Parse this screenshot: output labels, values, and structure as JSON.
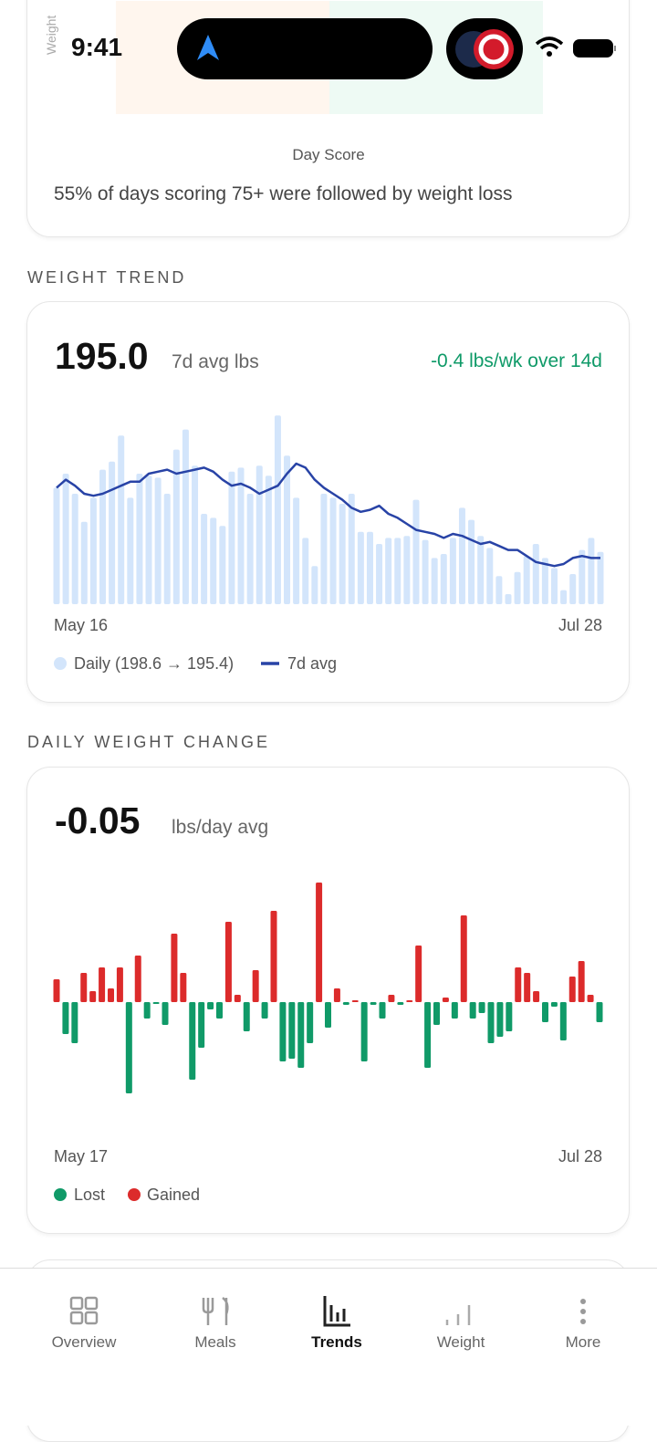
{
  "status_bar": {
    "time": "9:41"
  },
  "day_score_card": {
    "y_label": "Weight",
    "x_label": "Day Score",
    "insight": "55% of days scoring 75+ were followed by weight loss"
  },
  "weight_trend": {
    "section_title": "WEIGHT TREND",
    "value": "195.0",
    "unit": "7d avg lbs",
    "rate": "-0.4 lbs/wk over 14d",
    "chart_data": {
      "type": "bar",
      "x_labels": [
        "May 16",
        "Jul 28"
      ],
      "ylim": [
        192.8,
        203
      ],
      "series": [
        {
          "name": "Daily (198.6 → 195.4)",
          "color": "#d3e5fb",
          "values": [
            198.6,
            199.3,
            198.3,
            196.9,
            198.1,
            199.5,
            199.9,
            201.2,
            198.1,
            199.3,
            199.2,
            199.1,
            198.3,
            200.5,
            201.5,
            199.7,
            197.3,
            197.1,
            196.7,
            199.4,
            199.6,
            198.3,
            199.7,
            199.2,
            202.2,
            200.2,
            198.1,
            196.1,
            194.7,
            198.3,
            198.1,
            197.8,
            198.3,
            196.4,
            196.4,
            195.8,
            196.1,
            196.1,
            196.2,
            198.0,
            196.0,
            195.1,
            195.3,
            196.1,
            197.6,
            197.0,
            196.2,
            195.6,
            194.2,
            193.3,
            194.4,
            195.2,
            195.8,
            195.1,
            194.6,
            193.5,
            194.3,
            195.5,
            196.1,
            195.4
          ]
        },
        {
          "name": "7d avg",
          "type": "line",
          "color": "#2843a6",
          "values": [
            198.6,
            199.0,
            198.7,
            198.3,
            198.2,
            198.3,
            198.5,
            198.7,
            198.9,
            198.9,
            199.3,
            199.4,
            199.5,
            199.3,
            199.4,
            199.5,
            199.6,
            199.4,
            199.0,
            198.7,
            198.8,
            198.6,
            198.3,
            198.5,
            198.7,
            199.3,
            199.8,
            199.6,
            199.0,
            198.6,
            198.3,
            198.0,
            197.6,
            197.4,
            197.5,
            197.7,
            197.3,
            197.1,
            196.8,
            196.5,
            196.4,
            196.3,
            196.1,
            196.3,
            196.2,
            196.0,
            195.8,
            195.9,
            195.7,
            195.5,
            195.5,
            195.2,
            194.9,
            194.8,
            194.7,
            194.8,
            195.1,
            195.2,
            195.1,
            195.1
          ]
        }
      ]
    }
  },
  "daily_change": {
    "section_title": "DAILY WEIGHT CHANGE",
    "value": "-0.05",
    "unit": "lbs/day avg",
    "chart_data": {
      "type": "bar",
      "x_labels": [
        "May 17",
        "Jul 28"
      ],
      "ylim": [
        -1.2,
        1.4
      ],
      "values": [
        0.25,
        -0.35,
        -0.45,
        0.32,
        0.12,
        0.38,
        0.15,
        0.38,
        -1.0,
        0.51,
        -0.18,
        -0.02,
        -0.25,
        0.75,
        0.32,
        -0.85,
        -0.5,
        -0.08,
        -0.18,
        0.88,
        0.08,
        -0.32,
        0.35,
        -0.18,
        1.0,
        -0.65,
        -0.62,
        -0.72,
        -0.45,
        1.31,
        -0.28,
        0.15,
        -0.03,
        0.02,
        -0.65,
        -0.03,
        -0.18,
        0.08,
        -0.03,
        0.02,
        0.62,
        -0.72,
        -0.25,
        0.05,
        -0.18,
        0.95,
        -0.18,
        -0.12,
        -0.45,
        -0.38,
        -0.32,
        0.38,
        0.32,
        0.12,
        -0.22,
        -0.05,
        -0.42,
        0.28,
        0.45,
        0.08,
        -0.22
      ],
      "legend": [
        {
          "name": "Lost",
          "color": "#109a68"
        },
        {
          "name": "Gained",
          "color": "#dc2b2b"
        }
      ]
    }
  },
  "nav": {
    "items": [
      "Overview",
      "Meals",
      "Trends",
      "Weight",
      "More"
    ],
    "active": 2
  }
}
